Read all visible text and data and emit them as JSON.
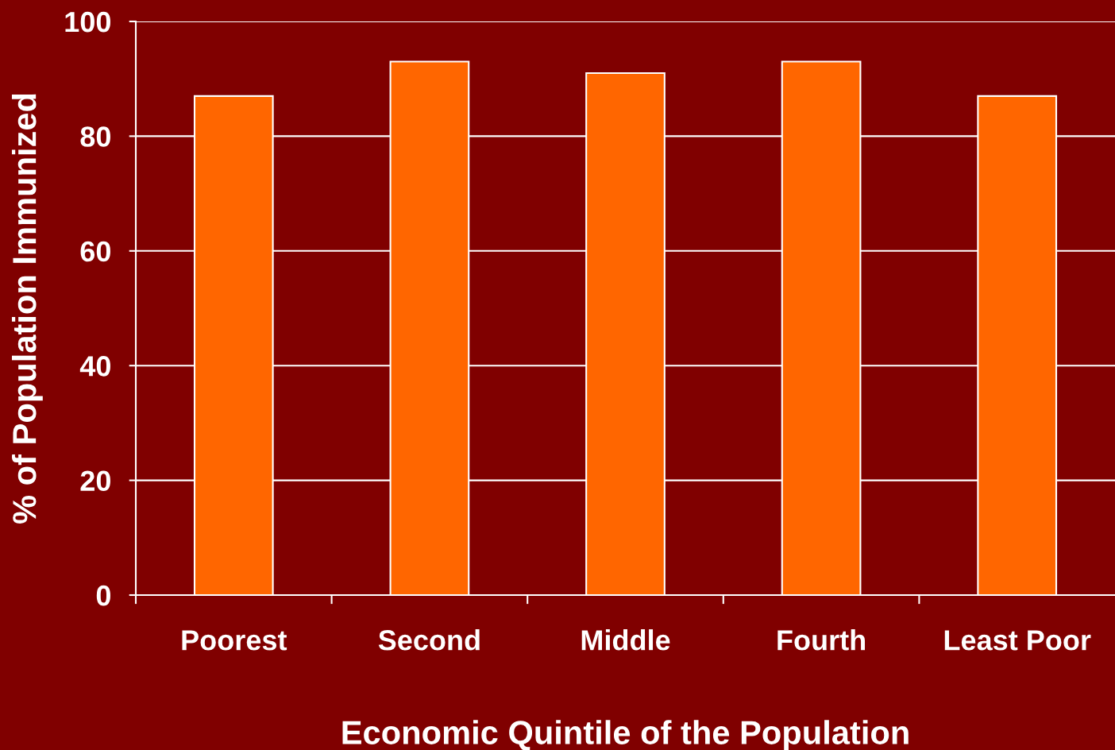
{
  "chart_data": {
    "type": "bar",
    "xlabel": "Economic Quintile of the Population",
    "ylabel": "% of Population Immunized",
    "categories": [
      "Poorest",
      "Second",
      "Middle",
      "Fourth",
      "Least Poor"
    ],
    "values": [
      87,
      93,
      91,
      93,
      87
    ],
    "color": "#ff6600",
    "ylim": [
      0,
      100
    ],
    "yticks": [
      0,
      20,
      40,
      60,
      80,
      100
    ],
    "grid": "y"
  }
}
